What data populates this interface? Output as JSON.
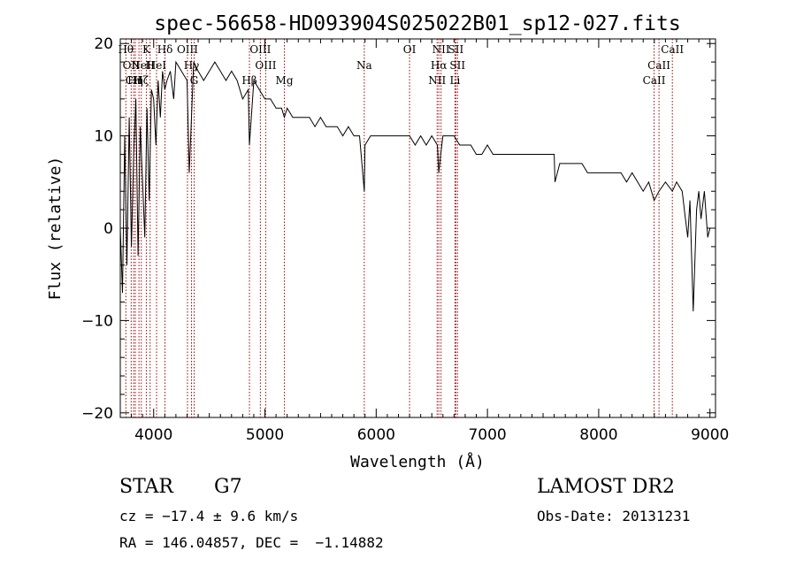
{
  "chart_data": {
    "type": "line",
    "title": "spec-56658-HD093904S025022B01_sp12-027.fits",
    "xlabel": "Wavelength (Å)",
    "ylabel": "Flux (relative)",
    "xlim": [
      3700,
      9050
    ],
    "ylim": [
      -20.5,
      20.5
    ],
    "xticks": [
      4000,
      5000,
      6000,
      7000,
      8000,
      9000
    ],
    "yticks": [
      -20,
      -10,
      0,
      10,
      20
    ],
    "grid": false,
    "line_color": "#000000",
    "marker_color": "#a00000",
    "series": [
      {
        "x": [
          3700,
          3720,
          3740,
          3760,
          3780,
          3800,
          3820,
          3840,
          3860,
          3880,
          3900,
          3920,
          3940,
          3960,
          3980,
          4000,
          4020,
          4040,
          4060,
          4080,
          4100,
          4120,
          4150,
          4180,
          4200,
          4250,
          4300,
          4320,
          4340,
          4360,
          4400,
          4450,
          4500,
          4550,
          4600,
          4650,
          4700,
          4750,
          4800,
          4850,
          4861,
          4900,
          4950,
          5000,
          5050,
          5100,
          5150,
          5175,
          5200,
          5250,
          5300,
          5350,
          5400,
          5450,
          5500,
          5550,
          5600,
          5650,
          5700,
          5750,
          5800,
          5850,
          5893,
          5900,
          5950,
          6000,
          6050,
          6100,
          6150,
          6200,
          6250,
          6300,
          6350,
          6400,
          6450,
          6500,
          6550,
          6563,
          6580,
          6600,
          6650,
          6700,
          6750,
          6800,
          6850,
          6900,
          6950,
          7000,
          7050,
          7100,
          7150,
          7200,
          7250,
          7300,
          7350,
          7400,
          7450,
          7500,
          7550,
          7600,
          7607,
          7650,
          7700,
          7750,
          7800,
          7850,
          7900,
          7950,
          8000,
          8050,
          8100,
          8150,
          8200,
          8250,
          8300,
          8350,
          8400,
          8450,
          8498,
          8542,
          8600,
          8662,
          8700,
          8750,
          8780,
          8800,
          8820,
          8850,
          8880,
          8900,
          8920,
          8950,
          8980,
          9000
        ],
        "y": [
          0,
          -7,
          10,
          -4,
          12,
          -2,
          8,
          14,
          -3,
          11,
          5,
          -1,
          13,
          3,
          15,
          14,
          9,
          16,
          12,
          17,
          15,
          16,
          17,
          14,
          18,
          17,
          16,
          6,
          12,
          18,
          17,
          16,
          17,
          18,
          17,
          16,
          17,
          16,
          14,
          15,
          9,
          16,
          15,
          14,
          14,
          13,
          13,
          12,
          13,
          12,
          12,
          12,
          12,
          11,
          12,
          11,
          11,
          11,
          10,
          11,
          10,
          10,
          4,
          9,
          10,
          10,
          10,
          10,
          10,
          10,
          10,
          10,
          9,
          10,
          9,
          10,
          9,
          6,
          8,
          10,
          10,
          10,
          9,
          9,
          9,
          8,
          8,
          9,
          8,
          8,
          8,
          8,
          8,
          8,
          8,
          8,
          8,
          8,
          8,
          8,
          5,
          7,
          7,
          7,
          7,
          7,
          6,
          6,
          6,
          6,
          6,
          6,
          6,
          5,
          6,
          5,
          4,
          5,
          3,
          4,
          5,
          4,
          5,
          4,
          1,
          -1,
          3,
          -9,
          2,
          4,
          1,
          4,
          -1,
          0
        ]
      }
    ],
    "lines": [
      {
        "x": 3750,
        "label": "Hθ",
        "row": 0
      },
      {
        "x": 3798,
        "label": "OII",
        "row": 1
      },
      {
        "x": 3820,
        "label": "CII",
        "row": 2
      },
      {
        "x": 3835,
        "label": "Hη",
        "row": 2
      },
      {
        "x": 3868,
        "label": "Ne",
        "row": 1
      },
      {
        "x": 3889,
        "label": "Hζ",
        "row": 2
      },
      {
        "x": 3934,
        "label": "K",
        "row": 0
      },
      {
        "x": 3968,
        "label": "H",
        "row": 1
      },
      {
        "x": 4026,
        "label": "HeI",
        "row": 1
      },
      {
        "x": 4102,
        "label": "Hδ",
        "row": 0
      },
      {
        "x": 4304,
        "label": "OIII",
        "row": 0
      },
      {
        "x": 4340,
        "label": "Hγ",
        "row": 1
      },
      {
        "x": 4364,
        "label": "G",
        "row": 2
      },
      {
        "x": 4861,
        "label": "Hβ",
        "row": 2
      },
      {
        "x": 4959,
        "label": "OIII",
        "row": 0
      },
      {
        "x": 5007,
        "label": "OIII",
        "row": 1
      },
      {
        "x": 5175,
        "label": "Mg",
        "row": 2
      },
      {
        "x": 5893,
        "label": "Na",
        "row": 1
      },
      {
        "x": 6300,
        "label": "OI",
        "row": 0
      },
      {
        "x": 6548,
        "label": "NII",
        "row": 2
      },
      {
        "x": 6563,
        "label": "Hα",
        "row": 1
      },
      {
        "x": 6583,
        "label": "NII",
        "row": 0
      },
      {
        "x": 6708,
        "label": "Li",
        "row": 2
      },
      {
        "x": 6716,
        "label": "SII",
        "row": 0
      },
      {
        "x": 6731,
        "label": "SII",
        "row": 1
      },
      {
        "x": 8498,
        "label": "CaII",
        "row": 2
      },
      {
        "x": 8542,
        "label": "CaII",
        "row": 1
      },
      {
        "x": 8662,
        "label": "CaII",
        "row": 0
      }
    ]
  },
  "info": {
    "class": "STAR",
    "subclass": "G7",
    "cz": "cz = −17.4 ± 9.6 km/s",
    "radec": "RA = 146.04857, DEC =  −1.14882",
    "survey": "LAMOST DR2",
    "obsdate": "Obs-Date: 20131231"
  }
}
